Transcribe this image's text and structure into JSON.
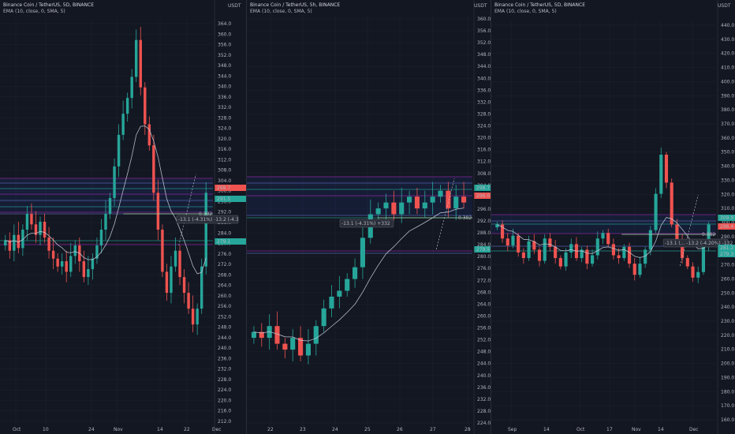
{
  "colors": {
    "up": "#26a69a",
    "down": "#ef5350",
    "ema": "#c4cbd9",
    "purple": "#9c27b0",
    "bg": "#131722",
    "grid": "#1e222d"
  },
  "panes": [
    {
      "title": "Binance Coin / TetherUS, 5D, BINANCE",
      "subtitle": "EMA (10, close, 0, SMA, 5)",
      "axis_unit": "USDT",
      "y_ticks": [
        "364.0",
        "360.0",
        "356.0",
        "352.0",
        "348.0",
        "344.0",
        "340.0",
        "336.0",
        "332.0",
        "328.0",
        "324.0",
        "320.0",
        "316.0",
        "312.0",
        "308.0",
        "304.0",
        "300.0",
        "296.0",
        "292.0",
        "288.0",
        "284.0",
        "280.0",
        "276.0",
        "272.0",
        "268.0",
        "264.0",
        "260.0",
        "256.0",
        "252.0",
        "248.0",
        "244.0",
        "240.0",
        "236.0",
        "232.0",
        "228.0",
        "224.0",
        "220.0",
        "216.0",
        "212.0"
      ],
      "x_ticks": [
        "Oct",
        "10",
        "24",
        "Nov",
        "14",
        "22",
        "Dec"
      ],
      "price_tags": [
        {
          "text": "298.7",
          "kind": "down"
        },
        {
          "text": "291.5",
          "kind": "up"
        },
        {
          "text": "279.1",
          "kind": "up"
        }
      ],
      "annotations": [
        "-13.1 (-4.31%) -13.2 (-4.3",
        "0.382"
      ]
    },
    {
      "title": "Binance Coin / TetherUS, 5h, BINANCE",
      "subtitle": "EMA (10, close, 0, SMA, 5)",
      "axis_unit": "USDT",
      "y_ticks": [
        "360.0",
        "356.0",
        "352.0",
        "348.0",
        "344.0",
        "340.0",
        "336.0",
        "332.0",
        "328.0",
        "324.0",
        "320.0",
        "316.0",
        "312.0",
        "308.0",
        "304.0",
        "300.0",
        "296.0",
        "292.0",
        "288.0",
        "284.0",
        "280.0",
        "276.0",
        "272.0",
        "268.0",
        "264.0",
        "260.0",
        "256.0",
        "252.0",
        "248.0",
        "244.0",
        "240.0",
        "236.0",
        "232.0",
        "228.0",
        "224.0"
      ],
      "x_ticks": [
        "22",
        "23",
        "24",
        "25",
        "26",
        "27",
        "28"
      ],
      "price_tags": [
        {
          "text": "298.7",
          "kind": "up"
        },
        {
          "text": "296.0",
          "kind": "down"
        },
        {
          "text": "279.5",
          "kind": "up"
        }
      ],
      "annotations": [
        "-13.1 (-4.31%) +332",
        "0.382"
      ]
    },
    {
      "title": "Binance Coin / TetherUS, 5D, BINANCE",
      "subtitle": "EMA (10, close, 0, SMA, 5)",
      "axis_unit": "USDT",
      "y_ticks": [
        "440.0",
        "430.0",
        "420.0",
        "410.0",
        "400.0",
        "390.0",
        "380.0",
        "370.0",
        "360.0",
        "350.0",
        "340.0",
        "330.0",
        "320.0",
        "310.0",
        "300.0",
        "290.0",
        "280.0",
        "270.0",
        "260.0",
        "250.0",
        "240.0",
        "230.0",
        "220.0",
        "210.0",
        "200.0",
        "190.0",
        "180.0",
        "170.0",
        "160.0"
      ],
      "x_ticks": [
        "Sep",
        "14",
        "Oct",
        "17",
        "Nov",
        "14",
        "Dec"
      ],
      "price_tags": [
        {
          "text": "309.9",
          "kind": "up"
        },
        {
          "text": "296.4",
          "kind": "down"
        },
        {
          "text": "281.2",
          "kind": "up"
        },
        {
          "text": "279.3",
          "kind": "up"
        }
      ],
      "annotations": [
        "-13.1 (... -13.2 (-4.20%) -132",
        "0.382"
      ]
    }
  ],
  "chart_data": [
    {
      "type": "candlestick",
      "title": "Binance Coin / TetherUS, 5D, BINANCE",
      "y_range": [
        212,
        366
      ],
      "series": [
        {
          "name": "Binance Coin / TetherUS",
          "close": [
            282,
            278,
            284,
            279,
            286,
            292,
            288,
            284,
            289,
            283,
            278,
            275,
            272,
            274,
            270,
            276,
            280,
            274,
            268,
            271,
            275,
            280,
            286,
            292,
            298,
            310,
            322,
            330,
            336,
            344,
            358,
            340,
            326,
            318,
            300,
            286,
            270,
            262,
            272,
            278,
            268,
            262,
            256,
            250,
            256,
            272,
            300
          ]
        },
        {
          "name": "EMA (10, close, 0, SMA, 5)"
        }
      ]
    },
    {
      "type": "candlestick",
      "title": "Binance Coin / TetherUS, 5h, BINANCE",
      "y_range": [
        222,
        362
      ],
      "series": [
        {
          "name": "Binance Coin / TetherUS",
          "close": [
            254,
            252,
            256,
            250,
            248,
            252,
            246,
            250,
            256,
            262,
            266,
            268,
            272,
            276,
            286,
            294,
            296,
            298,
            294,
            298,
            300,
            296,
            298,
            300,
            302,
            296,
            300,
            298
          ]
        },
        {
          "name": "EMA (10, close, 0, SMA, 5)"
        }
      ]
    },
    {
      "type": "candlestick",
      "title": "Binance Coin / TetherUS, 5D, BINANCE",
      "y_range": [
        158,
        446
      ],
      "series": [
        {
          "name": "Binance Coin / TetherUS",
          "close": [
            300,
            290,
            285,
            292,
            280,
            276,
            288,
            282,
            274,
            290,
            284,
            276,
            270,
            280,
            286,
            276,
            282,
            272,
            278,
            290,
            294,
            286,
            278,
            276,
            284,
            272,
            264,
            272,
            282,
            296,
            322,
            350,
            330,
            300,
            288,
            276,
            270,
            262,
            266,
            284,
            300
          ]
        },
        {
          "name": "EMA (10, close, 0, SMA, 5)"
        }
      ]
    }
  ]
}
